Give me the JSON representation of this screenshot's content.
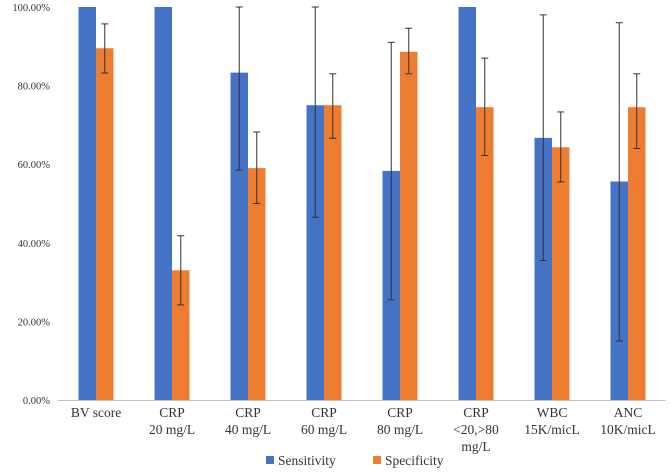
{
  "chart_data": {
    "type": "bar",
    "categories": [
      [
        "BV score"
      ],
      [
        "CRP",
        "20 mg/L"
      ],
      [
        "CRP",
        "40 mg/L"
      ],
      [
        "CRP",
        "60 mg/L"
      ],
      [
        "CRP",
        "80 mg/L"
      ],
      [
        "CRP",
        "<20,>80",
        "mg/L"
      ],
      [
        "WBC",
        "15K/micL"
      ],
      [
        "ANC",
        "10K/micL"
      ]
    ],
    "series": [
      {
        "name": "Sensitivity",
        "color": "#4472C4",
        "values": [
          100.0,
          100.0,
          83.3,
          75.0,
          58.3,
          100.0,
          66.7,
          55.6
        ],
        "error_low": [
          null,
          null,
          58.5,
          46.5,
          25.5,
          null,
          35.5,
          15.0
        ],
        "error_high": [
          null,
          null,
          100.0,
          100.0,
          91.0,
          null,
          98.0,
          96.0
        ]
      },
      {
        "name": "Specificity",
        "color": "#ED7D31",
        "values": [
          89.5,
          33.0,
          59.0,
          75.0,
          88.6,
          74.5,
          64.3,
          74.5
        ],
        "error_low": [
          83.2,
          24.2,
          50.0,
          66.6,
          83.0,
          62.2,
          55.5,
          64.0
        ],
        "error_high": [
          95.7,
          41.8,
          68.2,
          83.0,
          94.6,
          87.0,
          73.3,
          83.0
        ]
      }
    ],
    "y_ticks": [
      "0.00%",
      "20.00%",
      "40.00%",
      "60.00%",
      "80.00%",
      "100.00%"
    ],
    "ylim": [
      0,
      100
    ],
    "title": "",
    "xlabel": "",
    "ylabel": "",
    "grid": false,
    "legend_position": "bottom"
  }
}
